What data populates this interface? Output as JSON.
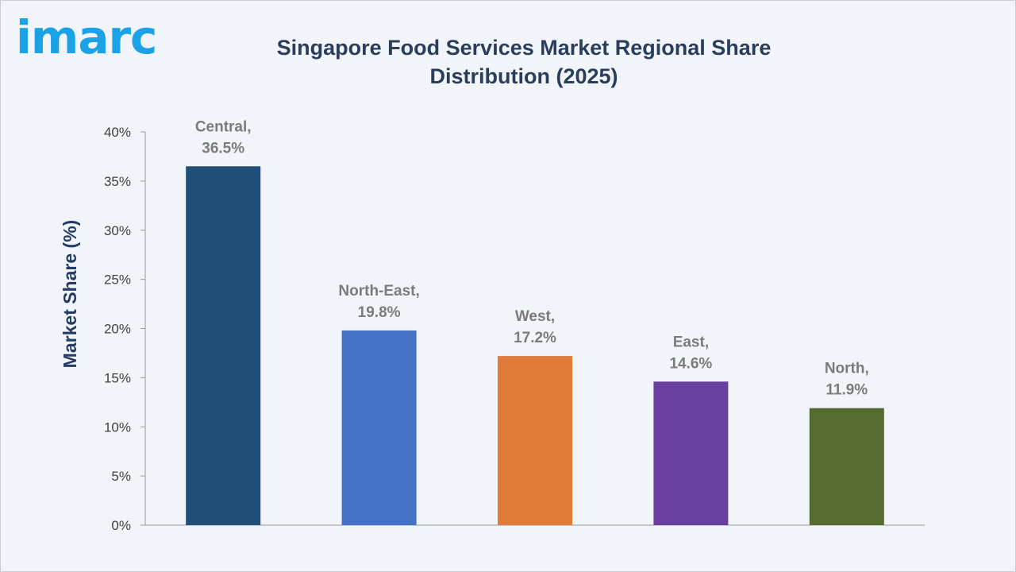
{
  "brand": {
    "logo_text": "imarc",
    "logo_color": "#1aa1e6"
  },
  "chart_data": {
    "type": "bar",
    "title": "Singapore Food Services Market Regional Share Distribution (2025)",
    "xlabel": "",
    "ylabel": "Market Share (%)",
    "ylim": [
      0,
      40
    ],
    "yticks": [
      0,
      5,
      10,
      15,
      20,
      25,
      30,
      35,
      40
    ],
    "ytick_labels": [
      "0%",
      "5%",
      "10%",
      "15%",
      "20%",
      "25%",
      "30%",
      "35%",
      "40%"
    ],
    "grid": false,
    "legend": "none",
    "categories": [
      "Central",
      "North-East",
      "West",
      "East",
      "North"
    ],
    "values": [
      36.5,
      19.8,
      17.2,
      14.6,
      11.9
    ],
    "data_labels": [
      [
        "Central,",
        "36.5%"
      ],
      [
        "North-East,",
        "19.8%"
      ],
      [
        "West,",
        "17.2%"
      ],
      [
        "East,",
        "14.6%"
      ],
      [
        "North,",
        "11.9%"
      ]
    ],
    "colors": [
      "#1f4e79",
      "#4472c4",
      "#e07b39",
      "#6b3fa0",
      "#556b2f"
    ]
  }
}
